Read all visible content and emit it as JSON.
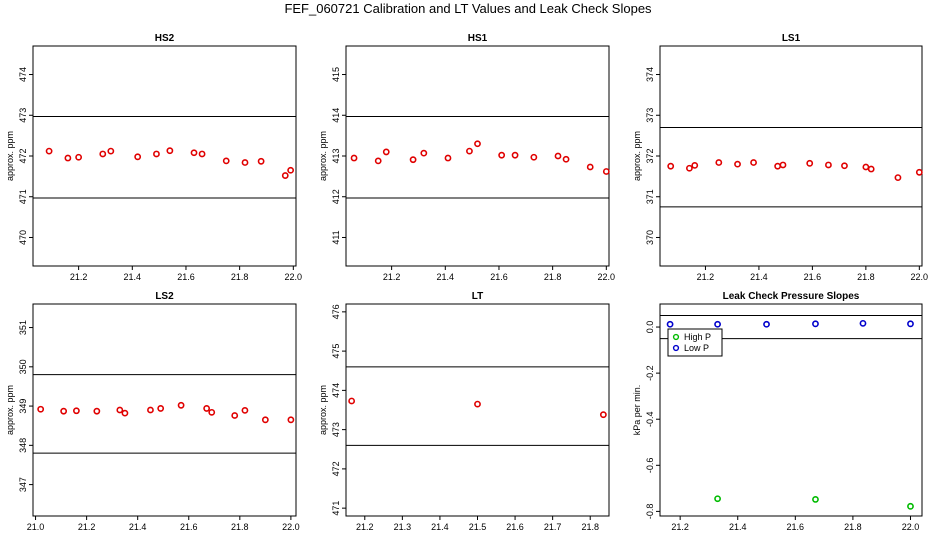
{
  "title": "FEF_060721  Calibration and LT Values and Leak Check Slopes",
  "colors": {
    "point": "#e00000",
    "high": "#00bb00",
    "low": "#0000cc"
  },
  "chart_data": [
    {
      "type": "scatter",
      "panel": "HS2",
      "title": "HS2",
      "xlabel": "",
      "ylabel": "approx. ppm",
      "xlim": [
        21.03,
        22.01
      ],
      "ylim": [
        469.3,
        474.7
      ],
      "xticks": [
        "21.2",
        "21.4",
        "21.6",
        "21.8",
        "22.0"
      ],
      "yticks": [
        "470",
        "471",
        "472",
        "473",
        "474"
      ],
      "hlines": [
        472.97,
        470.97
      ],
      "series": [
        {
          "marker": "circle",
          "x": [
            21.09,
            21.16,
            21.2,
            21.29,
            21.32,
            21.42,
            21.49,
            21.54,
            21.63,
            21.66,
            21.75,
            21.82,
            21.88,
            21.97,
            21.99
          ],
          "y": [
            472.12,
            471.95,
            471.97,
            472.05,
            472.12,
            471.98,
            472.05,
            472.13,
            472.08,
            472.05,
            471.88,
            471.84,
            471.87,
            471.52,
            471.65
          ]
        }
      ],
      "grid": false
    },
    {
      "type": "scatter",
      "panel": "HS1",
      "title": "HS1",
      "xlabel": "",
      "ylabel": "approx. ppm",
      "xlim": [
        21.03,
        22.01
      ],
      "ylim": [
        410.3,
        415.7
      ],
      "xticks": [
        "21.2",
        "21.4",
        "21.6",
        "21.8",
        "22.0"
      ],
      "yticks": [
        "411",
        "412",
        "413",
        "414",
        "415"
      ],
      "hlines": [
        413.97,
        411.97
      ],
      "series": [
        {
          "marker": "circle",
          "x": [
            21.06,
            21.15,
            21.18,
            21.28,
            21.32,
            21.41,
            21.49,
            21.52,
            21.61,
            21.66,
            21.73,
            21.82,
            21.85,
            21.94,
            22.0
          ],
          "y": [
            412.95,
            412.88,
            413.1,
            412.91,
            413.07,
            412.95,
            413.12,
            413.3,
            413.02,
            413.02,
            412.97,
            413.0,
            412.92,
            412.73,
            412.62
          ]
        }
      ],
      "grid": false
    },
    {
      "type": "scatter",
      "panel": "LS1",
      "title": "LS1",
      "xlabel": "",
      "ylabel": "approx. ppm",
      "xlim": [
        21.03,
        22.01
      ],
      "ylim": [
        369.3,
        374.7
      ],
      "xticks": [
        "21.2",
        "21.4",
        "21.6",
        "21.8",
        "22.0"
      ],
      "yticks": [
        "370",
        "371",
        "372",
        "373",
        "374"
      ],
      "hlines": [
        372.7,
        370.75
      ],
      "series": [
        {
          "marker": "circle",
          "x": [
            21.07,
            21.14,
            21.16,
            21.25,
            21.32,
            21.38,
            21.47,
            21.49,
            21.59,
            21.66,
            21.72,
            21.8,
            21.82,
            21.92,
            22.0
          ],
          "y": [
            371.75,
            371.7,
            371.77,
            371.84,
            371.8,
            371.84,
            371.75,
            371.78,
            371.82,
            371.78,
            371.76,
            371.73,
            371.68,
            371.47,
            371.6
          ]
        }
      ],
      "grid": false
    },
    {
      "type": "scatter",
      "panel": "LS2",
      "title": "LS2",
      "xlabel": "",
      "ylabel": "approx. ppm",
      "xlim": [
        20.99,
        22.02
      ],
      "ylim": [
        346.2,
        351.6
      ],
      "xticks": [
        "21.0",
        "21.2",
        "21.4",
        "21.6",
        "21.8",
        "22.0"
      ],
      "yticks": [
        "347",
        "348",
        "349",
        "350",
        "351"
      ],
      "hlines": [
        349.8,
        347.8
      ],
      "series": [
        {
          "marker": "circle",
          "x": [
            21.02,
            21.11,
            21.16,
            21.24,
            21.33,
            21.35,
            21.45,
            21.49,
            21.57,
            21.67,
            21.69,
            21.78,
            21.82,
            21.9,
            22.0
          ],
          "y": [
            348.92,
            348.87,
            348.88,
            348.87,
            348.9,
            348.82,
            348.9,
            348.94,
            349.02,
            348.94,
            348.84,
            348.76,
            348.89,
            348.65,
            348.65
          ]
        }
      ],
      "grid": false
    },
    {
      "type": "scatter",
      "panel": "LT",
      "title": "LT",
      "xlabel": "",
      "ylabel": "approx. ppm",
      "xlim": [
        21.15,
        21.85
      ],
      "ylim": [
        470.8,
        476.2
      ],
      "xticks": [
        "21.2",
        "21.3",
        "21.4",
        "21.5",
        "21.6",
        "21.7",
        "21.8"
      ],
      "yticks": [
        "471",
        "472",
        "473",
        "474",
        "475",
        "476"
      ],
      "hlines": [
        474.6,
        472.6
      ],
      "series": [
        {
          "marker": "circle",
          "x": [
            21.165,
            21.5,
            21.835
          ],
          "y": [
            473.73,
            473.65,
            473.38
          ]
        }
      ],
      "grid": false
    },
    {
      "type": "scatter",
      "panel": "Leak Check",
      "title": "Leak Check Pressure Slopes",
      "xlabel": "",
      "ylabel": "kPa per min.",
      "xlim": [
        21.13,
        22.04
      ],
      "ylim": [
        -0.82,
        0.1
      ],
      "xticks": [
        "21.2",
        "21.4",
        "21.6",
        "21.8",
        "22.0"
      ],
      "yticks": [
        "-0.8",
        "-0.6",
        "-0.4",
        "-0.2",
        "0.0"
      ],
      "hlines": [
        0.05,
        -0.05
      ],
      "legend": {
        "position": "upper-left",
        "entries": [
          "High P",
          "Low P"
        ]
      },
      "series": [
        {
          "name": "High P",
          "marker": "circle",
          "x": [
            21.33,
            21.67,
            22.0
          ],
          "y": [
            -0.745,
            -0.748,
            -0.778
          ]
        },
        {
          "name": "Low P",
          "marker": "circle",
          "x": [
            21.165,
            21.33,
            21.5,
            21.67,
            21.835,
            22.0
          ],
          "y": [
            0.012,
            0.012,
            0.012,
            0.014,
            0.016,
            0.014
          ]
        }
      ],
      "grid": false
    }
  ]
}
